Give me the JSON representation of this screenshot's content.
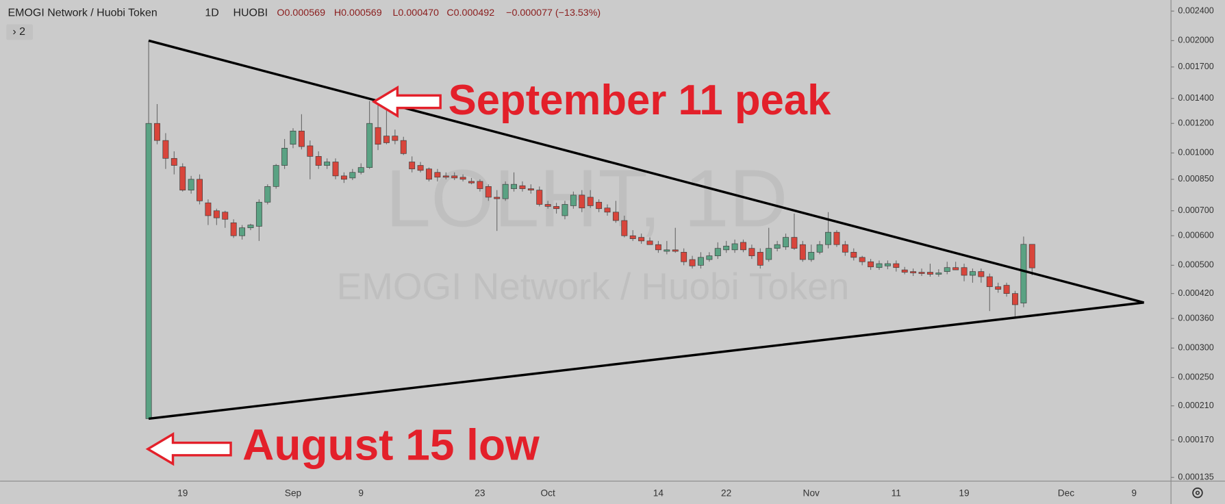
{
  "chart_data": {
    "type": "candlestick",
    "title": "EMOGI Network / Huobi Token",
    "interval": "1D",
    "exchange": "HUOBI",
    "ohlc_legend": [
      "O0.000569",
      "H0.000569",
      "L0.000470",
      "C0.000492",
      "−0.000077 (−13.53%)"
    ],
    "indicators_badge": "› 2",
    "watermark": "LOLHT, 1D",
    "annotations": [
      "September 11 peak",
      "August 15 low"
    ],
    "up_color": "#5aa283",
    "down_color": "#d8453b",
    "log_scale": true,
    "grid": false,
    "ylim": [
      0.000132,
      0.00257
    ],
    "yticks": [
      {
        "value": 0.0024,
        "label": "0.002400"
      },
      {
        "value": 0.002,
        "label": "0.002000"
      },
      {
        "value": 0.0017,
        "label": "0.001700"
      },
      {
        "value": 0.0014,
        "label": "0.001400"
      },
      {
        "value": 0.0012,
        "label": "0.001200"
      },
      {
        "value": 0.001,
        "label": "0.001000"
      },
      {
        "value": 0.00085,
        "label": "0.000850"
      },
      {
        "value": 0.0007,
        "label": "0.000700"
      },
      {
        "value": 0.0006,
        "label": "0.000600"
      },
      {
        "value": 0.0005,
        "label": "0.000500"
      },
      {
        "value": 0.00042,
        "label": "0.000420"
      },
      {
        "value": 0.00036,
        "label": "0.000360"
      },
      {
        "value": 0.0003,
        "label": "0.000300"
      },
      {
        "value": 0.00025,
        "label": "0.000250"
      },
      {
        "value": 0.00021,
        "label": "0.000210"
      },
      {
        "value": 0.00017,
        "label": "0.000170"
      },
      {
        "value": 0.000135,
        "label": "0.000135"
      }
    ],
    "categories": [
      null,
      null,
      null,
      null,
      "19",
      null,
      null,
      null,
      null,
      null,
      null,
      null,
      null,
      null,
      null,
      null,
      null,
      "Sep",
      null,
      null,
      null,
      null,
      null,
      null,
      null,
      "9",
      null,
      null,
      null,
      null,
      null,
      null,
      null,
      null,
      null,
      null,
      null,
      null,
      null,
      "23",
      null,
      null,
      null,
      null,
      null,
      null,
      null,
      "Oct",
      null,
      null,
      null,
      null,
      null,
      null,
      null,
      null,
      null,
      null,
      null,
      null,
      "14",
      null,
      null,
      null,
      null,
      null,
      null,
      null,
      "22",
      null,
      null,
      null,
      null,
      null,
      null,
      null,
      null,
      null,
      "Nov",
      null,
      null,
      null,
      null,
      null,
      null,
      null,
      null,
      null,
      "11",
      null,
      null,
      null,
      null,
      null,
      null,
      null,
      "19",
      null,
      null,
      null,
      null,
      null,
      null,
      null,
      null,
      null,
      null,
      null,
      "Dec",
      null,
      null,
      null,
      null,
      null,
      null,
      null,
      "9",
      null,
      null,
      null,
      null
    ],
    "open": [
      0.000194,
      0.0012,
      0.00108,
      0.000967,
      0.000918,
      0.000795,
      0.00085,
      0.000735,
      0.0007,
      0.000694,
      0.00065,
      0.0006,
      0.00063,
      0.000636,
      0.000738,
      0.000813,
      0.000926,
      0.001055,
      0.001145,
      0.001045,
      0.000979,
      0.000926,
      0.000946,
      0.000868,
      0.000857,
      0.000887,
      0.000914,
      0.00117,
      0.00111,
      0.00111,
      0.00108,
      0.000946,
      0.000926,
      0.000906,
      0.000887,
      0.000868,
      0.000868,
      0.000861,
      0.000839,
      0.000839,
      0.000813,
      0.000761,
      0.000754,
      0.000802,
      0.000817,
      0.000802,
      0.000795,
      0.000728,
      0.000719,
      0.000679,
      0.000722,
      0.000771,
      0.000761,
      0.000738,
      0.000712,
      0.000694,
      0.000659,
      0.0006,
      0.000594,
      0.000581,
      0.000568,
      0.000545,
      0.00055,
      0.000542,
      0.000518,
      0.0005,
      0.000518,
      0.00053,
      0.00055,
      0.00055,
      0.000576,
      0.000555,
      0.000542,
      0.000518,
      0.000555,
      0.00056,
      0.000594,
      0.000568,
      0.000518,
      0.000542,
      0.000568,
      0.000613,
      0.000568,
      0.000542,
      0.000525,
      0.000511,
      0.000493,
      0.000498,
      0.000505,
      0.000486,
      0.000481,
      0.000479,
      0.000479,
      0.000473,
      0.000481,
      0.000493,
      0.000493,
      0.00047,
      0.000481,
      0.000466,
      0.000438,
      0.000442,
      0.00042,
      0.000396,
      0.000569,
      null,
      null,
      null,
      null,
      null,
      null,
      null,
      null,
      null,
      null,
      null,
      null,
      null,
      null,
      null,
      null
    ],
    "high": [
      0.002,
      0.001352,
      0.00113,
      0.00101,
      0.000938,
      0.000868,
      0.000876,
      0.000751,
      0.000709,
      0.0007,
      0.000664,
      0.000641,
      0.000646,
      0.000751,
      0.000824,
      0.000934,
      0.00109,
      0.001165,
      0.00127,
      0.00108,
      0.00101,
      0.000967,
      0.000967,
      0.000887,
      0.000906,
      0.000938,
      0.001378,
      0.001378,
      0.0013,
      0.001155,
      0.001105,
      0.000979,
      0.000946,
      0.000914,
      0.000906,
      0.000887,
      0.000887,
      0.000876,
      0.000857,
      0.00085,
      0.000824,
      0.000795,
      0.000839,
      0.000887,
      0.000839,
      0.000824,
      0.000813,
      0.000744,
      0.000735,
      0.000744,
      0.000788,
      0.000795,
      0.000795,
      0.000751,
      0.000728,
      0.000744,
      0.000679,
      0.000621,
      0.000608,
      0.000594,
      0.000581,
      0.000581,
      0.00063,
      0.000555,
      0.00053,
      0.000542,
      0.000542,
      0.000576,
      0.000581,
      0.000586,
      0.000586,
      0.000568,
      0.000555,
      0.00063,
      0.000581,
      0.000608,
      0.000688,
      0.000581,
      0.000568,
      0.000581,
      0.000694,
      0.000621,
      0.000581,
      0.000555,
      0.00053,
      0.00052,
      0.000515,
      0.000515,
      0.000515,
      0.000495,
      0.00049,
      0.00049,
      0.000505,
      0.000488,
      0.000511,
      0.000511,
      0.000505,
      0.00049,
      0.00049,
      0.000475,
      0.000449,
      0.000449,
      0.000427,
      0.000597,
      0.000569,
      null,
      null,
      null,
      null,
      null,
      null,
      null,
      null,
      null,
      null,
      null,
      null,
      null,
      null,
      null,
      null
    ],
    "low": [
      0.000194,
      0.001055,
      0.000906,
      0.000876,
      0.000788,
      0.000778,
      0.000728,
      0.000641,
      0.000641,
      0.00063,
      0.000592,
      0.000586,
      0.000621,
      0.000581,
      0.000728,
      0.000802,
      0.000906,
      0.00103,
      0.001022,
      0.00085,
      0.000906,
      0.000906,
      0.00085,
      0.000831,
      0.000846,
      0.000876,
      0.000906,
      0.001018,
      0.001055,
      0.001055,
      0.000987,
      0.000887,
      0.000887,
      0.000839,
      0.000839,
      0.00085,
      0.000846,
      0.000839,
      0.000824,
      0.000788,
      0.000744,
      0.000618,
      0.000744,
      0.000788,
      0.000788,
      0.000778,
      0.000719,
      0.000709,
      0.000688,
      0.000664,
      0.000709,
      0.000694,
      0.000712,
      0.000694,
      0.000679,
      0.00065,
      0.000594,
      0.000581,
      0.000571,
      0.000568,
      0.00054,
      0.000535,
      0.00054,
      0.0005,
      0.00049,
      0.00049,
      0.000511,
      0.00052,
      0.00054,
      0.00054,
      0.000542,
      0.00052,
      0.00049,
      0.000511,
      0.000545,
      0.00055,
      0.00055,
      0.000511,
      0.000511,
      0.000535,
      0.000555,
      0.00056,
      0.00053,
      0.000515,
      0.0005,
      0.000486,
      0.000486,
      0.000488,
      0.000481,
      0.000473,
      0.000468,
      0.000468,
      0.000466,
      0.000466,
      0.000473,
      0.000486,
      0.000453,
      0.000449,
      0.000449,
      0.000377,
      0.000422,
      0.000412,
      0.000362,
      0.000386,
      0.00047,
      null,
      null,
      null,
      null,
      null,
      null,
      null,
      null,
      null,
      null,
      null,
      null,
      null,
      null,
      null,
      null
    ],
    "close": [
      0.0012,
      0.00108,
      0.000967,
      0.000926,
      0.000795,
      0.00085,
      0.000744,
      0.000679,
      0.00067,
      0.000664,
      0.0006,
      0.00063,
      0.000641,
      0.000738,
      0.000813,
      0.000926,
      0.00103,
      0.001145,
      0.00104,
      0.000979,
      0.000926,
      0.000946,
      0.000868,
      0.00085,
      0.000887,
      0.000914,
      0.0012,
      0.001055,
      0.001065,
      0.00108,
      0.000996,
      0.000906,
      0.000898,
      0.00085,
      0.000861,
      0.000861,
      0.000857,
      0.00085,
      0.000831,
      0.000802,
      0.000761,
      0.000754,
      0.000824,
      0.000824,
      0.000802,
      0.000795,
      0.000728,
      0.000719,
      0.000709,
      0.000728,
      0.000771,
      0.000712,
      0.000722,
      0.000709,
      0.000694,
      0.000659,
      0.0006,
      0.000589,
      0.000581,
      0.000568,
      0.00055,
      0.00055,
      0.000545,
      0.000511,
      0.000498,
      0.000525,
      0.00053,
      0.000555,
      0.000563,
      0.000571,
      0.00055,
      0.00053,
      0.0005,
      0.000555,
      0.000568,
      0.000594,
      0.000555,
      0.000518,
      0.000542,
      0.000568,
      0.000613,
      0.000568,
      0.000542,
      0.000525,
      0.000511,
      0.000495,
      0.000505,
      0.000505,
      0.000493,
      0.000479,
      0.000477,
      0.000475,
      0.000473,
      0.000477,
      0.000493,
      0.000486,
      0.00047,
      0.000481,
      0.000466,
      0.000438,
      0.000431,
      0.00042,
      0.000392,
      0.000569,
      0.000492,
      null,
      null,
      null,
      null,
      null,
      null,
      null,
      null,
      null,
      null,
      null,
      null,
      null,
      null,
      null,
      null
    ]
  }
}
